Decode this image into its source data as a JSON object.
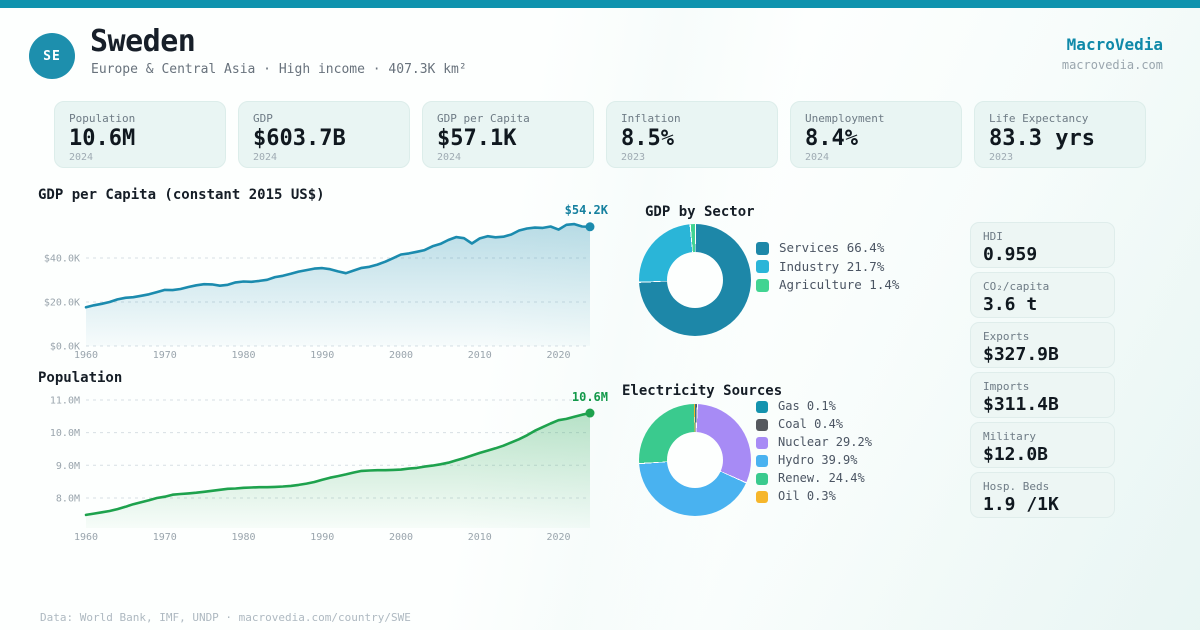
{
  "brand": {
    "name": "MacroVedia",
    "domain": "macrovedia.com"
  },
  "header": {
    "badge": "SE",
    "country": "Sweden",
    "subtitle": "Europe & Central Asia · High income · 407.3K km²"
  },
  "stat_cards": [
    {
      "label": "Population",
      "value": "10.6M",
      "year": "2024"
    },
    {
      "label": "GDP",
      "value": "$603.7B",
      "year": "2024"
    },
    {
      "label": "GDP per Capita",
      "value": "$57.1K",
      "year": "2024"
    },
    {
      "label": "Inflation",
      "value": "8.5%",
      "year": "2023"
    },
    {
      "label": "Unemployment",
      "value": "8.4%",
      "year": "2024"
    },
    {
      "label": "Life Expectancy",
      "value": "83.3 yrs",
      "year": "2023"
    }
  ],
  "side_cards": [
    {
      "label": "HDI",
      "value": "0.959"
    },
    {
      "label": "CO₂/capita",
      "value": "3.6 t"
    },
    {
      "label": "Exports",
      "value": "$327.9B"
    },
    {
      "label": "Imports",
      "value": "$311.4B"
    },
    {
      "label": "Military",
      "value": "$12.0B"
    },
    {
      "label": "Hosp. Beds",
      "value": "1.9 /1K"
    }
  ],
  "footer": {
    "text": "Data: World Bank, IMF, UNDP · macrovedia.com/country/SWE"
  },
  "colors": {
    "accent_teal": "#0f93ae",
    "gdp_line": "#1b8bae",
    "population_line": "#1ea24d",
    "card_bg": "#e9f5f3"
  },
  "chart_data": [
    {
      "type": "area",
      "title": "GDP per Capita (constant 2015 US$)",
      "end_label": "$54.2K",
      "color": "#1b8bae",
      "end_label_color": "#15809f",
      "ylim": [
        0,
        60
      ],
      "yticks": [
        {
          "v": 0,
          "label": "$0.0K"
        },
        {
          "v": 20,
          "label": "$20.0K"
        },
        {
          "v": 40,
          "label": "$40.0K"
        }
      ],
      "xticks": [
        1960,
        1970,
        1980,
        1990,
        2000,
        2010,
        2020
      ],
      "grid": true,
      "x": [
        1960,
        1961,
        1962,
        1963,
        1964,
        1965,
        1966,
        1967,
        1968,
        1969,
        1970,
        1971,
        1972,
        1973,
        1974,
        1975,
        1976,
        1977,
        1978,
        1979,
        1980,
        1981,
        1982,
        1983,
        1984,
        1985,
        1986,
        1987,
        1988,
        1989,
        1990,
        1991,
        1992,
        1993,
        1994,
        1995,
        1996,
        1997,
        1998,
        1999,
        2000,
        2001,
        2002,
        2003,
        2004,
        2005,
        2006,
        2007,
        2008,
        2009,
        2010,
        2011,
        2012,
        2013,
        2014,
        2015,
        2016,
        2017,
        2018,
        2019,
        2020,
        2021,
        2022,
        2023,
        2024
      ],
      "y": [
        17.6,
        18.5,
        19.2,
        20.0,
        21.2,
        21.9,
        22.2,
        22.8,
        23.5,
        24.5,
        25.5,
        25.4,
        25.9,
        26.8,
        27.6,
        28.1,
        28.0,
        27.4,
        27.8,
        28.9,
        29.3,
        29.2,
        29.6,
        30.1,
        31.3,
        31.9,
        32.8,
        33.8,
        34.5,
        35.2,
        35.4,
        34.9,
        33.9,
        33.1,
        34.3,
        35.5,
        36.0,
        37.0,
        38.3,
        39.9,
        41.6,
        42.1,
        42.8,
        43.6,
        45.3,
        46.4,
        48.2,
        49.5,
        49.0,
        46.6,
        48.9,
        49.9,
        49.4,
        49.7,
        50.7,
        52.5,
        53.4,
        53.8,
        53.7,
        54.3,
        52.9,
        55.1,
        55.4,
        54.3,
        54.2
      ]
    },
    {
      "type": "area",
      "title": "Population",
      "end_label": "10.6M",
      "color": "#1ea24d",
      "end_label_color": "#13994a",
      "ylim": [
        7.08,
        11.0
      ],
      "yticks": [
        {
          "v": 8,
          "label": "8.0M"
        },
        {
          "v": 9,
          "label": "9.0M"
        },
        {
          "v": 10,
          "label": "10.0M"
        },
        {
          "v": 11,
          "label": "11.0M"
        }
      ],
      "xticks": [
        1960,
        1970,
        1980,
        1990,
        2000,
        2010,
        2020
      ],
      "grid": true,
      "x": [
        1960,
        1961,
        1962,
        1963,
        1964,
        1965,
        1966,
        1967,
        1968,
        1969,
        1970,
        1971,
        1972,
        1973,
        1974,
        1975,
        1976,
        1977,
        1978,
        1979,
        1980,
        1981,
        1982,
        1983,
        1984,
        1985,
        1986,
        1987,
        1988,
        1989,
        1990,
        1991,
        1992,
        1993,
        1994,
        1995,
        1996,
        1997,
        1998,
        1999,
        2000,
        2001,
        2002,
        2003,
        2004,
        2005,
        2006,
        2007,
        2008,
        2009,
        2010,
        2011,
        2012,
        2013,
        2014,
        2015,
        2016,
        2017,
        2018,
        2019,
        2020,
        2021,
        2022,
        2023,
        2024
      ],
      "y": [
        7.48,
        7.52,
        7.56,
        7.6,
        7.66,
        7.73,
        7.81,
        7.87,
        7.93,
        8.0,
        8.04,
        8.1,
        8.12,
        8.14,
        8.16,
        8.19,
        8.22,
        8.25,
        8.28,
        8.29,
        8.31,
        8.32,
        8.33,
        8.33,
        8.34,
        8.35,
        8.37,
        8.4,
        8.44,
        8.49,
        8.56,
        8.62,
        8.67,
        8.72,
        8.78,
        8.83,
        8.84,
        8.85,
        8.85,
        8.86,
        8.87,
        8.9,
        8.92,
        8.96,
        8.99,
        9.03,
        9.08,
        9.15,
        9.22,
        9.3,
        9.38,
        9.45,
        9.52,
        9.6,
        9.7,
        9.8,
        9.92,
        10.06,
        10.17,
        10.28,
        10.38,
        10.42,
        10.49,
        10.55,
        10.6
      ]
    },
    {
      "type": "donut",
      "title": "GDP by Sector",
      "legend_position": "right",
      "slices": [
        {
          "label": "Services",
          "value": 66.4,
          "color": "#1d87a8"
        },
        {
          "label": "Industry",
          "value": 21.7,
          "color": "#2ab5d8"
        },
        {
          "label": "Agriculture",
          "value": 1.4,
          "color": "#41d492"
        }
      ]
    },
    {
      "type": "donut",
      "title": "Electricity Sources",
      "legend_position": "right",
      "slices": [
        {
          "label": "Gas",
          "value": 0.1,
          "color": "#1493ae"
        },
        {
          "label": "Coal",
          "value": 0.4,
          "color": "#55595e"
        },
        {
          "label": "Nuclear",
          "value": 29.2,
          "color": "#a78bf5"
        },
        {
          "label": "Hydro",
          "value": 39.9,
          "color": "#49b2f0"
        },
        {
          "label": "Renew.",
          "value": 24.4,
          "color": "#3aca8e"
        },
        {
          "label": "Oil",
          "value": 0.3,
          "color": "#f6b62b"
        }
      ]
    }
  ]
}
